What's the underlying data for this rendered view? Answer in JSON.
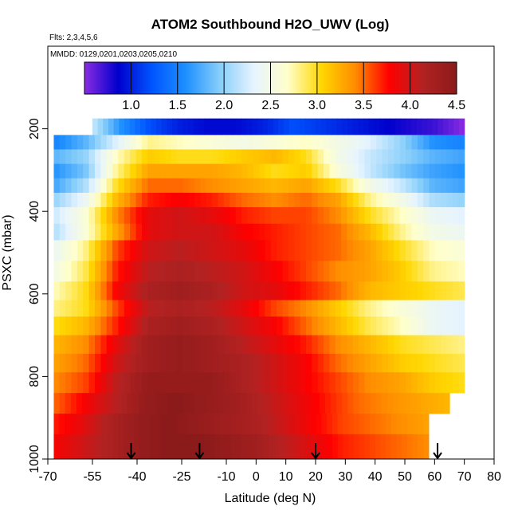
{
  "chart_data": {
    "type": "heatmap",
    "title": "ATOM2 Southbound H2O_UWV (Log)",
    "flights_label": "Flts: 2,3,4,5,6",
    "dates_label": "MMDD: 0129,0201,0203,0205,0210",
    "xlabel": "Latitude (deg N)",
    "ylabel": "PSXC (mbar)",
    "xlim": [
      -70,
      80
    ],
    "ylim": [
      1000,
      0
    ],
    "x_ticks": [
      -70,
      -55,
      -40,
      -25,
      -10,
      0,
      10,
      20,
      30,
      40,
      50,
      60,
      70,
      80
    ],
    "x_tick_labels": [
      "-70",
      "-55",
      "-40",
      "-25",
      "-10",
      "0",
      "10",
      "20",
      "30",
      "40",
      "50",
      "60",
      "70",
      "80"
    ],
    "y_ticks": [
      200,
      400,
      600,
      800,
      1000
    ],
    "y_tick_labels": [
      "200",
      "400",
      "600",
      "800",
      "1000"
    ],
    "colorbar": {
      "range": [
        0.5,
        4.5
      ],
      "ticks": [
        1.0,
        1.5,
        2.0,
        2.5,
        3.0,
        3.5,
        4.0,
        4.5
      ],
      "tick_labels": [
        "1.0",
        "1.5",
        "2.0",
        "2.5",
        "3.0",
        "3.5",
        "4.0",
        "4.5"
      ],
      "colors": [
        "#8a2be2",
        "#0000cd",
        "#0055ff",
        "#1e90ff",
        "#87cefa",
        "#e6f4ff",
        "#ffffcc",
        "#ffd700",
        "#ff8c00",
        "#ff0000",
        "#b22222",
        "#8b1a1a"
      ]
    },
    "arrows_latitude": [
      -42,
      -19,
      20,
      61
    ],
    "layers": [
      {
        "p": [
          175,
          215
        ],
        "lat": [
          -55,
          70
        ],
        "values": [
          2.2,
          1.6,
          1.2,
          1.0,
          0.9,
          0.9,
          1.0,
          1.2,
          1.1,
          1.0,
          0.9,
          0.8,
          0.7,
          0.5
        ]
      },
      {
        "p": [
          215,
          250
        ],
        "lat": [
          -68,
          70
        ],
        "values": [
          1.5,
          1.8,
          2.3,
          2.8,
          2.7,
          2.6,
          2.5,
          2.6,
          2.7,
          2.5,
          2.3,
          2.0,
          1.6,
          1.5
        ]
      },
      {
        "p": [
          250,
          285
        ],
        "lat": [
          -68,
          70
        ],
        "values": [
          1.8,
          2.0,
          2.7,
          3.1,
          3.0,
          3.0,
          3.1,
          3.2,
          3.0,
          2.5,
          2.2,
          2.0,
          1.8,
          1.7
        ]
      },
      {
        "p": [
          285,
          320
        ],
        "lat": [
          -68,
          70
        ],
        "values": [
          1.6,
          1.9,
          2.8,
          3.3,
          3.3,
          3.3,
          3.2,
          3.0,
          3.1,
          2.6,
          2.2,
          1.9,
          1.7,
          1.6
        ]
      },
      {
        "p": [
          320,
          355
        ],
        "lat": [
          -68,
          70
        ],
        "values": [
          1.7,
          2.1,
          3.0,
          3.5,
          3.5,
          3.4,
          3.3,
          3.2,
          3.3,
          3.0,
          2.5,
          2.2,
          1.8,
          1.7
        ]
      },
      {
        "p": [
          355,
          390
        ],
        "lat": [
          -68,
          70
        ],
        "values": [
          2.0,
          2.4,
          3.2,
          3.7,
          3.8,
          3.7,
          3.5,
          3.4,
          3.5,
          3.3,
          2.8,
          2.5,
          2.1,
          2.0
        ]
      },
      {
        "p": [
          390,
          430
        ],
        "lat": [
          -68,
          70
        ],
        "values": [
          2.2,
          2.6,
          3.4,
          3.9,
          4.0,
          3.9,
          3.7,
          3.6,
          3.6,
          3.4,
          3.0,
          2.7,
          2.4,
          2.3
        ]
      },
      {
        "p": [
          430,
          470
        ],
        "lat": [
          -68,
          70
        ],
        "values": [
          2.1,
          2.6,
          3.3,
          3.9,
          4.0,
          4.0,
          3.8,
          3.7,
          3.6,
          3.5,
          3.2,
          2.8,
          2.5,
          2.4
        ]
      },
      {
        "p": [
          470,
          520
        ],
        "lat": [
          -68,
          70
        ],
        "values": [
          2.4,
          2.8,
          3.6,
          4.0,
          4.1,
          4.0,
          3.9,
          3.7,
          3.6,
          3.5,
          3.3,
          3.0,
          2.7,
          2.6
        ]
      },
      {
        "p": [
          520,
          570
        ],
        "lat": [
          -68,
          70
        ],
        "values": [
          2.5,
          2.9,
          3.7,
          4.1,
          4.2,
          4.1,
          4.0,
          3.8,
          3.6,
          3.4,
          3.3,
          3.1,
          2.8,
          2.7
        ]
      },
      {
        "p": [
          570,
          615
        ],
        "lat": [
          -68,
          70
        ],
        "values": [
          2.7,
          3.0,
          3.8,
          4.2,
          4.3,
          4.2,
          4.0,
          3.9,
          3.7,
          3.5,
          3.2,
          3.1,
          3.0,
          2.9
        ]
      },
      {
        "p": [
          615,
          655
        ],
        "lat": [
          -68,
          70
        ],
        "values": [
          2.8,
          3.0,
          3.6,
          4.1,
          4.2,
          4.1,
          3.9,
          3.6,
          3.4,
          3.1,
          2.8,
          2.6,
          2.4,
          2.3
        ]
      },
      {
        "p": [
          655,
          700
        ],
        "lat": [
          -68,
          70
        ],
        "values": [
          3.0,
          3.2,
          3.7,
          4.2,
          4.3,
          4.2,
          4.0,
          3.8,
          3.5,
          3.2,
          2.9,
          2.7,
          2.4,
          2.3
        ]
      },
      {
        "p": [
          700,
          745
        ],
        "lat": [
          -68,
          70
        ],
        "values": [
          3.2,
          3.4,
          3.9,
          4.3,
          4.4,
          4.3,
          4.1,
          3.9,
          3.7,
          3.4,
          3.2,
          3.0,
          2.9,
          2.8
        ]
      },
      {
        "p": [
          745,
          790
        ],
        "lat": [
          -68,
          70
        ],
        "values": [
          3.3,
          3.5,
          4.0,
          4.3,
          4.4,
          4.3,
          4.2,
          4.0,
          3.8,
          3.5,
          3.3,
          3.1,
          3.0,
          2.9
        ]
      },
      {
        "p": [
          790,
          840
        ],
        "lat": [
          -68,
          70
        ],
        "values": [
          3.4,
          3.6,
          4.1,
          4.4,
          4.4,
          4.4,
          4.2,
          4.0,
          3.8,
          3.6,
          3.4,
          3.3,
          3.1,
          3.0
        ]
      },
      {
        "p": [
          840,
          890
        ],
        "lat": [
          -68,
          65
        ],
        "values": [
          3.5,
          3.8,
          4.1,
          4.4,
          4.5,
          4.4,
          4.3,
          4.1,
          3.9,
          3.7,
          3.5,
          3.4,
          3.3,
          3.2
        ]
      },
      {
        "p": [
          890,
          940
        ],
        "lat": [
          -68,
          58
        ],
        "values": [
          3.7,
          3.9,
          4.2,
          4.4,
          4.5,
          4.4,
          4.3,
          4.2,
          4.0,
          3.8,
          3.6,
          3.5,
          3.4,
          3.3
        ]
      },
      {
        "p": [
          940,
          1000
        ],
        "lat": [
          -68,
          58
        ],
        "values": [
          3.8,
          4.0,
          4.2,
          4.4,
          4.5,
          4.5,
          4.4,
          4.3,
          4.1,
          3.9,
          3.7,
          3.6,
          3.5,
          3.4
        ]
      }
    ]
  }
}
